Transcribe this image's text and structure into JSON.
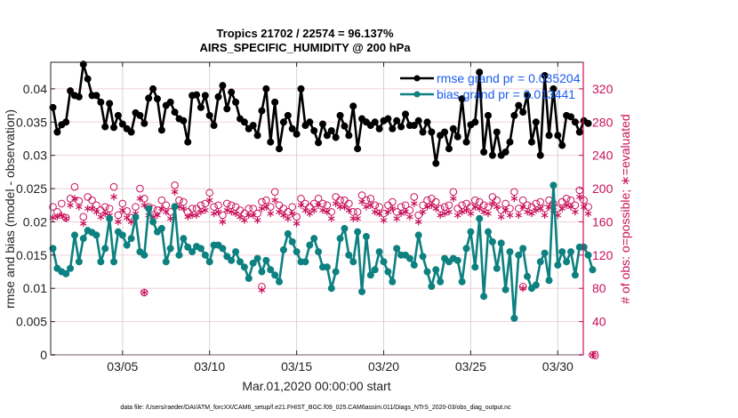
{
  "chart_data": {
    "type": "line",
    "title": "Tropics 21702 / 22574 = 96.137%",
    "subtitle": "AIRS_SPECIFIC_HUMIDITY @ 200 hPa",
    "xlabel": "Mar.01,2020 00:00:00 start",
    "ylabel": "rmse and bias (model - observation)",
    "y2label": "# of obs: o=possible; ∗=evaluated",
    "footer": "data file: /Users/raeder/DAI/ATM_forcXX/CAM6_setup/f.e21.FHIST_BGC.f09_025.CAM6assim.011/Diags_NTrS_2020-03/obs_diag_output.nc",
    "x_unit": "days since Mar.01,2020 00:00",
    "x_step_days": 0.25,
    "xlim": [
      0,
      31
    ],
    "ylim": [
      0,
      0.044
    ],
    "y2lim": [
      0,
      352
    ],
    "grid": true,
    "legend_position": "top-right",
    "x_ticks": [
      {
        "day": 4,
        "label": "03/05"
      },
      {
        "day": 9,
        "label": "03/10"
      },
      {
        "day": 14,
        "label": "03/15"
      },
      {
        "day": 19,
        "label": "03/20"
      },
      {
        "day": 24,
        "label": "03/25"
      },
      {
        "day": 29,
        "label": "03/30"
      }
    ],
    "y_ticks": [
      "0",
      "0.005",
      "0.01",
      "0.015",
      "0.02",
      "0.025",
      "0.03",
      "0.035",
      "0.04"
    ],
    "y_tick_values": [
      0,
      0.005,
      0.01,
      0.015,
      0.02,
      0.025,
      0.03,
      0.035,
      0.04
    ],
    "y2_ticks": [
      "0",
      "40",
      "80",
      "120",
      "160",
      "200",
      "240",
      "280",
      "320"
    ],
    "y2_tick_values": [
      0,
      40,
      80,
      120,
      160,
      200,
      240,
      280,
      320
    ],
    "colors": {
      "rmse": "#000000",
      "bias": "#0d8080",
      "obs": "#c8105a",
      "legend_text": "#1a5cf0",
      "grid_h": "#f0d0dc",
      "grid_v": "#d4d4d4"
    },
    "series": [
      {
        "name": "rmse",
        "legend": "rmse grand pr = 0.035204",
        "axis": "left",
        "values": [
          0.0372,
          0.0335,
          0.0346,
          0.035,
          0.0397,
          0.039,
          0.0388,
          0.0437,
          0.0415,
          0.039,
          0.039,
          0.038,
          0.0343,
          0.0378,
          0.0342,
          0.036,
          0.0347,
          0.034,
          0.0335,
          0.0364,
          0.036,
          0.0348,
          0.0386,
          0.04,
          0.0385,
          0.0338,
          0.0375,
          0.038,
          0.0365,
          0.0355,
          0.0352,
          0.032,
          0.039,
          0.0391,
          0.0372,
          0.039,
          0.036,
          0.0345,
          0.0388,
          0.0405,
          0.037,
          0.0395,
          0.038,
          0.0355,
          0.035,
          0.034,
          0.0345,
          0.033,
          0.0367,
          0.04,
          0.032,
          0.038,
          0.031,
          0.035,
          0.036,
          0.034,
          0.0332,
          0.04,
          0.0345,
          0.035,
          0.0337,
          0.0319,
          0.0347,
          0.033,
          0.0337,
          0.0327,
          0.036,
          0.0344,
          0.033,
          0.0374,
          0.031,
          0.0355,
          0.035,
          0.0345,
          0.035,
          0.034,
          0.0352,
          0.0355,
          0.034,
          0.0352,
          0.0343,
          0.0362,
          0.0345,
          0.0345,
          0.0352,
          0.0335,
          0.035,
          0.0335,
          0.0288,
          0.033,
          0.0335,
          0.031,
          0.034,
          0.0328,
          0.0385,
          0.032,
          0.0346,
          0.035,
          0.0425,
          0.0305,
          0.036,
          0.03,
          0.0335,
          0.03,
          0.0305,
          0.032,
          0.036,
          0.0375,
          0.0365,
          0.039,
          0.032,
          0.035,
          0.03,
          0.042,
          0.033,
          0.04,
          0.033,
          0.0315,
          0.036,
          0.0358,
          0.035,
          0.0335,
          0.0352,
          0.0348
        ]
      },
      {
        "name": "bias",
        "legend": "bias grand pr = 0.013441",
        "axis": "left",
        "values": [
          0.016,
          0.013,
          0.0125,
          0.0122,
          0.013,
          0.018,
          0.014,
          0.0175,
          0.0187,
          0.0184,
          0.018,
          0.014,
          0.016,
          0.0205,
          0.014,
          0.0185,
          0.018,
          0.0165,
          0.0175,
          0.0207,
          0.0155,
          0.015,
          0.022,
          0.02,
          0.0185,
          0.019,
          0.014,
          0.016,
          0.0223,
          0.015,
          0.0175,
          0.0162,
          0.0155,
          0.0163,
          0.016,
          0.015,
          0.014,
          0.0165,
          0.0165,
          0.016,
          0.0148,
          0.0142,
          0.0155,
          0.014,
          0.0132,
          0.0115,
          0.0138,
          0.0145,
          0.0125,
          0.0142,
          0.0128,
          0.012,
          0.011,
          0.0158,
          0.0182,
          0.017,
          0.0155,
          0.014,
          0.014,
          0.0165,
          0.0175,
          0.0155,
          0.0132,
          0.0132,
          0.01,
          0.0125,
          0.0175,
          0.019,
          0.015,
          0.014,
          0.0185,
          0.0095,
          0.0178,
          0.012,
          0.0128,
          0.0155,
          0.014,
          0.0125,
          0.011,
          0.016,
          0.015,
          0.015,
          0.0145,
          0.0135,
          0.018,
          0.0148,
          0.0125,
          0.0103,
          0.0128,
          0.011,
          0.0145,
          0.014,
          0.0145,
          0.0142,
          0.011,
          0.016,
          0.0185,
          0.0132,
          0.0205,
          0.0088,
          0.0185,
          0.017,
          0.013,
          0.0168,
          0.0098,
          0.0155,
          0.0055,
          0.015,
          0.016,
          0.0118,
          0.01,
          0.0105,
          0.014,
          0.0153,
          0.0112,
          0.0255,
          0.0135,
          0.0155,
          0.014,
          0.0155,
          0.012,
          0.0162,
          0.0162,
          0.015,
          0.0128
        ]
      },
      {
        "name": "possible",
        "legend": "o=possible",
        "axis": "right",
        "marker": "circle",
        "values": [
          178,
          172,
          182,
          165,
          188,
          202,
          185,
          166,
          190,
          186,
          180,
          174,
          178,
          176,
          202,
          168,
          182,
          173,
          165,
          178,
          200,
          188,
          178,
          176,
          174,
          186,
          180,
          172,
          204,
          186,
          184,
          172,
          176,
          176,
          180,
          182,
          195,
          178,
          180,
          168,
          182,
          180,
          178,
          174,
          170,
          176,
          176,
          170,
          184,
          186,
          178,
          196,
          180,
          176,
          172,
          178,
          166,
          188,
          182,
          178,
          182,
          188,
          182,
          180,
          172,
          190,
          186,
          186,
          182,
          172,
          172,
          192,
          186,
          188,
          180,
          178,
          170,
          180,
          184,
          172,
          178,
          180,
          174,
          190,
          168,
          180,
          186,
          188,
          184,
          176,
          178,
          180,
          196,
          176,
          180,
          182,
          178,
          186,
          184,
          180,
          178,
          190,
          186,
          174,
          182,
          176,
          196,
          176,
          186,
          180,
          178,
          182,
          184,
          176,
          186,
          182,
          176,
          184,
          188,
          186,
          180,
          198,
          186,
          178
        ]
      },
      {
        "name": "evaluated",
        "legend": "∗=evaluated",
        "axis": "right",
        "marker": "asterisk",
        "values": [
          165,
          166,
          168,
          164,
          180,
          188,
          178,
          158,
          176,
          176,
          172,
          166,
          170,
          168,
          190,
          160,
          174,
          165,
          160,
          170,
          188,
          180,
          168,
          166,
          168,
          176,
          172,
          164,
          196,
          178,
          176,
          166,
          168,
          168,
          172,
          174,
          186,
          170,
          172,
          160,
          174,
          172,
          170,
          166,
          162,
          168,
          168,
          162,
          176,
          178,
          170,
          186,
          172,
          168,
          164,
          170,
          158,
          180,
          174,
          170,
          174,
          180,
          174,
          172,
          164,
          182,
          178,
          178,
          174,
          164,
          164,
          184,
          178,
          180,
          172,
          170,
          162,
          172,
          176,
          164,
          170,
          172,
          166,
          182,
          160,
          172,
          178,
          180,
          176,
          168,
          170,
          172,
          188,
          168,
          172,
          174,
          170,
          178,
          176,
          172,
          170,
          182,
          178,
          166,
          174,
          168,
          188,
          168,
          178,
          172,
          170,
          174,
          176,
          168,
          178,
          174,
          168,
          176,
          180,
          178,
          172,
          190,
          178,
          170
        ]
      }
    ],
    "outliers": [
      {
        "series": "possible",
        "day": 5.25,
        "value": 75
      },
      {
        "series": "evaluated",
        "day": 5.25,
        "value": 75
      },
      {
        "series": "possible",
        "day": 12.0,
        "value": 82
      },
      {
        "series": "evaluated",
        "day": 12.0,
        "value": 78
      },
      {
        "series": "possible",
        "day": 27.0,
        "value": 82
      },
      {
        "series": "evaluated",
        "day": 27.0,
        "value": 80
      },
      {
        "series": "possible",
        "day": 31.0,
        "value": 0
      },
      {
        "series": "evaluated",
        "day": 31.0,
        "value": 0
      }
    ]
  }
}
